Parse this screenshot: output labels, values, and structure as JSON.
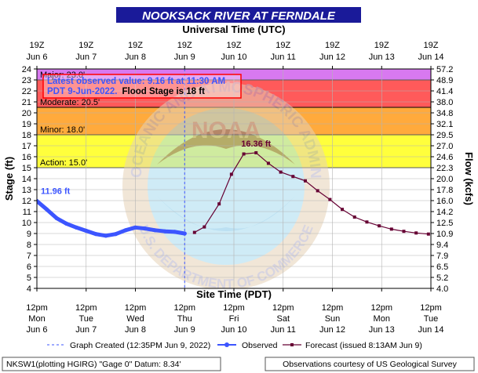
{
  "header": {
    "title": "NOOKSACK RIVER AT FERNDALE",
    "top_axis_title": "Universal Time (UTC)"
  },
  "chart_data": {
    "type": "line",
    "title": "NOOKSACK RIVER AT FERNDALE",
    "x_top_label": "Universal Time (UTC)",
    "x_bottom_label": "Site Time (PDT)",
    "ylabel_left": "Stage (ft)",
    "ylabel_right": "Flow (kcfs)",
    "ylim": [
      4,
      24
    ],
    "xlim_days": [
      0,
      8
    ],
    "grid": true,
    "top_ticks": [
      {
        "time": "19Z",
        "date": "Jun 6"
      },
      {
        "time": "19Z",
        "date": "Jun 7"
      },
      {
        "time": "19Z",
        "date": "Jun 8"
      },
      {
        "time": "19Z",
        "date": "Jun 9"
      },
      {
        "time": "19Z",
        "date": "Jun 10"
      },
      {
        "time": "19Z",
        "date": "Jun 11"
      },
      {
        "time": "19Z",
        "date": "Jun 12"
      },
      {
        "time": "19Z",
        "date": "Jun 13"
      },
      {
        "time": "19Z",
        "date": "Jun 14"
      }
    ],
    "bottom_ticks": [
      {
        "time": "12pm",
        "day": "Mon",
        "date": "Jun 6"
      },
      {
        "time": "12pm",
        "day": "Tue",
        "date": "Jun 7"
      },
      {
        "time": "12pm",
        "day": "Wed",
        "date": "Jun 8"
      },
      {
        "time": "12pm",
        "day": "Thu",
        "date": "Jun 9"
      },
      {
        "time": "12pm",
        "day": "Fri",
        "date": "Jun 10"
      },
      {
        "time": "12pm",
        "day": "Sat",
        "date": "Jun 11"
      },
      {
        "time": "12pm",
        "day": "Sun",
        "date": "Jun 12"
      },
      {
        "time": "12pm",
        "day": "Mon",
        "date": "Jun 13"
      },
      {
        "time": "12pm",
        "day": "Tue",
        "date": "Jun 14"
      }
    ],
    "y_ticks": [
      4,
      5,
      6,
      7,
      8,
      9,
      10,
      11,
      12,
      13,
      14,
      15,
      16,
      17,
      18,
      19,
      20,
      21,
      22,
      23,
      24
    ],
    "flow_ticks": [
      {
        "stage": 4,
        "label": "4.0"
      },
      {
        "stage": 5,
        "label": "5.2"
      },
      {
        "stage": 6,
        "label": "6.5"
      },
      {
        "stage": 7,
        "label": "7.9"
      },
      {
        "stage": 8,
        "label": "9.4"
      },
      {
        "stage": 9,
        "label": "10.9"
      },
      {
        "stage": 10,
        "label": "12.5"
      },
      {
        "stage": 11,
        "label": "14.2"
      },
      {
        "stage": 12,
        "label": "16.0"
      },
      {
        "stage": 13,
        "label": "17.8"
      },
      {
        "stage": 14,
        "label": "20.0"
      },
      {
        "stage": 15,
        "label": "22.3"
      },
      {
        "stage": 16,
        "label": "24.6"
      },
      {
        "stage": 17,
        "label": "27.0"
      },
      {
        "stage": 18,
        "label": "29.5"
      },
      {
        "stage": 19,
        "label": "32.1"
      },
      {
        "stage": 20,
        "label": "34.8"
      },
      {
        "stage": 21,
        "label": "38.0"
      },
      {
        "stage": 22,
        "label": "41.4"
      },
      {
        "stage": 23,
        "label": "48.9"
      },
      {
        "stage": 24,
        "label": "57.2"
      }
    ],
    "flood_categories": [
      {
        "name": "action",
        "label": "Action: 15.0'",
        "from": 15.0,
        "to": 18.0,
        "color": "#ffff3c"
      },
      {
        "name": "minor",
        "label": "Minor: 18.0'",
        "from": 18.0,
        "to": 20.5,
        "color": "#ffaa3c"
      },
      {
        "name": "moderate",
        "label": "Moderate: 20.5'",
        "from": 20.5,
        "to": 23.0,
        "color": "#ff5a5a"
      },
      {
        "name": "major",
        "label": "Major: 23.0'",
        "from": 23.0,
        "to": 24.0,
        "color": "#d879f0"
      }
    ],
    "graph_created_day": 3.0,
    "observed": {
      "name": "Observed",
      "color": "#3c55ff",
      "peak_label": "11.96 ft",
      "x": [
        0.0,
        0.2,
        0.4,
        0.6,
        0.8,
        1.0,
        1.2,
        1.4,
        1.6,
        1.8,
        2.0,
        2.2,
        2.4,
        2.6,
        2.8,
        3.0
      ],
      "y": [
        11.96,
        11.2,
        10.4,
        9.9,
        9.55,
        9.25,
        8.95,
        8.8,
        8.95,
        9.3,
        9.55,
        9.45,
        9.3,
        9.2,
        9.15,
        9.0
      ]
    },
    "forecast": {
      "name": "Forecast (issued 8:13AM Jun 9)",
      "color": "#660033",
      "peak_label": "16.36 ft",
      "x": [
        3.2,
        3.4,
        3.7,
        3.95,
        4.2,
        4.45,
        4.7,
        4.95,
        5.2,
        5.45,
        5.7,
        5.95,
        6.2,
        6.45,
        6.7,
        6.95,
        7.2,
        7.45,
        7.7,
        7.95
      ],
      "y": [
        9.1,
        9.6,
        11.7,
        14.4,
        16.25,
        16.36,
        15.4,
        14.6,
        14.2,
        13.8,
        12.9,
        12.1,
        11.2,
        10.5,
        10.05,
        9.7,
        9.4,
        9.2,
        9.05,
        8.95
      ]
    }
  },
  "info_box": {
    "line1": "Latest observed value: 9.16 ft at 11:30 AM",
    "line2a": "PDT 9-Jun-2022.",
    "line2b": "Flood Stage is 18 ft"
  },
  "legend": {
    "graph_created": "Graph Created (12:35PM Jun 9, 2022)",
    "observed": "Observed",
    "forecast": "Forecast (issued 8:13AM Jun 9)"
  },
  "footer": {
    "left": "NKSW1(plotting HGIRG) \"Gage 0\" Datum: 8.34'",
    "right": "Observations courtesy of US Geological Survey"
  },
  "watermark": {
    "logo_text": "NOAA",
    "ring_text_top": "NATIONAL OCEANIC AND ATMOSPHERIC ADMINISTRATION",
    "ring_text_bottom": "U.S. DEPARTMENT OF COMMERCE"
  },
  "colors": {
    "title_bg": "#1a1a99",
    "title_fg": "#ffffff",
    "info_border": "#ff0000",
    "info_text": "#3c55ff",
    "gridline": "#b4b4b4"
  }
}
